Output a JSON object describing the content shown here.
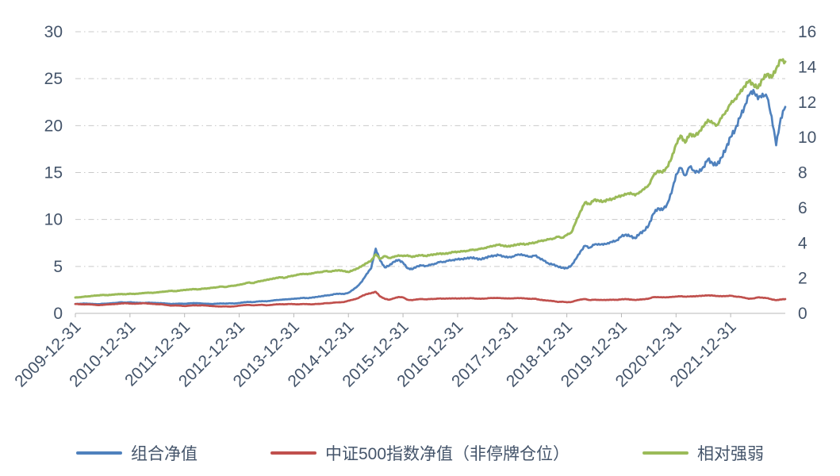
{
  "chart_data": {
    "type": "line",
    "title": "",
    "xlabel": "",
    "ylabel": "",
    "grid": true,
    "legend_position": "bottom",
    "samples_per_year": 12,
    "colors": {
      "axis_text": "#44546a",
      "gridline": "#c9c9c9",
      "baseline": "#b8b8b8"
    },
    "left_axis": {
      "min": 0,
      "max": 30,
      "ticks": [
        0,
        5,
        10,
        15,
        20,
        25,
        30
      ]
    },
    "right_axis": {
      "min": 0,
      "max": 16,
      "ticks": [
        0,
        2,
        4,
        6,
        8,
        10,
        12,
        14,
        16
      ]
    },
    "x_tick_labels": [
      "2009-12-31",
      "2010-12-31",
      "2011-12-31",
      "2012-12-31",
      "2013-12-31",
      "2014-12-31",
      "2015-12-31",
      "2016-12-31",
      "2017-12-31",
      "2018-12-31",
      "2019-12-31",
      "2020-12-31",
      "2021-12-31"
    ],
    "series": [
      {
        "name": "组合净值",
        "axis": "left",
        "color": "#4f81bd",
        "values": [
          1.0,
          1.02,
          1.05,
          1.03,
          1.0,
          0.98,
          1.02,
          1.05,
          1.08,
          1.12,
          1.18,
          1.15,
          1.18,
          1.15,
          1.12,
          1.1,
          1.14,
          1.12,
          1.1,
          1.08,
          1.05,
          1.0,
          1.02,
          1.04,
          1.02,
          1.06,
          1.1,
          1.08,
          1.05,
          1.02,
          1.0,
          1.03,
          1.06,
          1.04,
          1.07,
          1.05,
          1.1,
          1.18,
          1.22,
          1.2,
          1.26,
          1.3,
          1.28,
          1.35,
          1.4,
          1.45,
          1.48,
          1.52,
          1.55,
          1.6,
          1.65,
          1.62,
          1.68,
          1.75,
          1.82,
          1.9,
          1.95,
          2.05,
          2.1,
          2.05,
          2.2,
          2.5,
          2.9,
          3.4,
          4.2,
          4.8,
          6.9,
          5.6,
          4.9,
          5.1,
          5.5,
          5.7,
          5.4,
          4.8,
          4.7,
          5.0,
          5.1,
          5.05,
          5.15,
          5.3,
          5.45,
          5.5,
          5.6,
          5.7,
          5.75,
          5.8,
          5.85,
          5.95,
          5.85,
          5.75,
          5.9,
          6.05,
          6.15,
          6.2,
          6.1,
          5.95,
          6.05,
          6.2,
          6.3,
          6.1,
          6.05,
          6.15,
          5.9,
          5.6,
          5.3,
          5.2,
          5.0,
          4.85,
          4.8,
          5.1,
          5.8,
          6.6,
          7.2,
          7.0,
          7.3,
          7.4,
          7.3,
          7.5,
          7.6,
          7.8,
          8.2,
          8.4,
          8.2,
          8.0,
          8.5,
          8.8,
          9.4,
          10.6,
          11.2,
          11.0,
          11.6,
          12.8,
          14.8,
          15.5,
          14.7,
          15.6,
          15.2,
          15.0,
          15.6,
          16.4,
          16.0,
          15.8,
          16.6,
          17.6,
          18.8,
          19.6,
          20.8,
          22.0,
          23.2,
          23.8,
          22.8,
          23.4,
          23.0,
          21.0,
          17.9,
          20.8,
          22.0
        ]
      },
      {
        "name": "中证500指数净值（非停牌仓位）",
        "axis": "left",
        "color": "#c0504d",
        "values": [
          1.0,
          0.98,
          0.95,
          0.97,
          0.92,
          0.88,
          0.9,
          0.95,
          0.97,
          1.0,
          1.05,
          1.08,
          1.05,
          1.02,
          1.05,
          1.08,
          1.06,
          1.0,
          0.98,
          0.96,
          0.9,
          0.82,
          0.85,
          0.82,
          0.78,
          0.82,
          0.86,
          0.84,
          0.86,
          0.82,
          0.78,
          0.75,
          0.73,
          0.75,
          0.72,
          0.75,
          0.82,
          0.88,
          0.9,
          0.86,
          0.88,
          0.92,
          0.85,
          0.9,
          0.95,
          0.98,
          0.96,
          1.0,
          0.98,
          0.96,
          1.0,
          0.98,
          0.96,
          1.0,
          1.02,
          1.08,
          1.1,
          1.15,
          1.18,
          1.2,
          1.35,
          1.45,
          1.6,
          1.85,
          2.05,
          2.15,
          2.3,
          1.8,
          1.55,
          1.45,
          1.6,
          1.75,
          1.7,
          1.45,
          1.4,
          1.5,
          1.52,
          1.5,
          1.52,
          1.55,
          1.58,
          1.57,
          1.58,
          1.6,
          1.58,
          1.6,
          1.6,
          1.62,
          1.58,
          1.55,
          1.58,
          1.62,
          1.65,
          1.63,
          1.62,
          1.58,
          1.6,
          1.62,
          1.63,
          1.58,
          1.55,
          1.56,
          1.45,
          1.4,
          1.35,
          1.32,
          1.22,
          1.25,
          1.18,
          1.22,
          1.35,
          1.48,
          1.52,
          1.42,
          1.45,
          1.44,
          1.42,
          1.44,
          1.45,
          1.44,
          1.5,
          1.52,
          1.48,
          1.42,
          1.48,
          1.5,
          1.58,
          1.72,
          1.74,
          1.7,
          1.72,
          1.74,
          1.8,
          1.82,
          1.78,
          1.8,
          1.82,
          1.85,
          1.88,
          1.92,
          1.9,
          1.85,
          1.82,
          1.85,
          1.88,
          1.8,
          1.75,
          1.68,
          1.55,
          1.6,
          1.7,
          1.68,
          1.62,
          1.5,
          1.4,
          1.48,
          1.52
        ]
      },
      {
        "name": "相对强弱",
        "axis": "right",
        "color": "#9bbb59",
        "values": [
          0.9,
          0.92,
          0.95,
          0.97,
          1.0,
          1.02,
          1.05,
          1.03,
          1.06,
          1.08,
          1.1,
          1.08,
          1.12,
          1.1,
          1.13,
          1.15,
          1.18,
          1.16,
          1.2,
          1.22,
          1.25,
          1.28,
          1.26,
          1.3,
          1.33,
          1.35,
          1.38,
          1.36,
          1.4,
          1.42,
          1.45,
          1.48,
          1.52,
          1.5,
          1.55,
          1.58,
          1.62,
          1.68,
          1.75,
          1.72,
          1.8,
          1.85,
          1.9,
          1.95,
          2.0,
          2.05,
          2.02,
          2.1,
          2.15,
          2.2,
          2.25,
          2.22,
          2.28,
          2.32,
          2.35,
          2.4,
          2.38,
          2.42,
          2.45,
          2.4,
          2.35,
          2.45,
          2.55,
          2.7,
          2.85,
          3.0,
          3.35,
          3.1,
          3.25,
          3.15,
          3.2,
          3.3,
          3.25,
          3.3,
          3.2,
          3.28,
          3.3,
          3.26,
          3.32,
          3.35,
          3.4,
          3.38,
          3.42,
          3.48,
          3.5,
          3.52,
          3.55,
          3.6,
          3.62,
          3.66,
          3.72,
          3.78,
          3.85,
          3.9,
          3.85,
          3.8,
          3.85,
          3.9,
          3.95,
          3.92,
          3.98,
          4.02,
          4.1,
          4.15,
          4.2,
          4.25,
          4.35,
          4.3,
          4.45,
          4.6,
          5.2,
          5.8,
          6.3,
          6.2,
          6.45,
          6.4,
          6.35,
          6.45,
          6.5,
          6.6,
          6.7,
          6.75,
          6.85,
          6.7,
          6.9,
          7.05,
          7.3,
          7.8,
          8.1,
          8.0,
          8.3,
          8.8,
          9.6,
          10.1,
          9.7,
          10.2,
          10.05,
          10.3,
          10.6,
          11.0,
          10.8,
          10.7,
          11.1,
          11.5,
          11.9,
          12.2,
          12.5,
          12.9,
          13.2,
          13.0,
          12.8,
          13.3,
          13.6,
          13.4,
          13.9,
          14.4,
          14.3
        ]
      }
    ]
  }
}
